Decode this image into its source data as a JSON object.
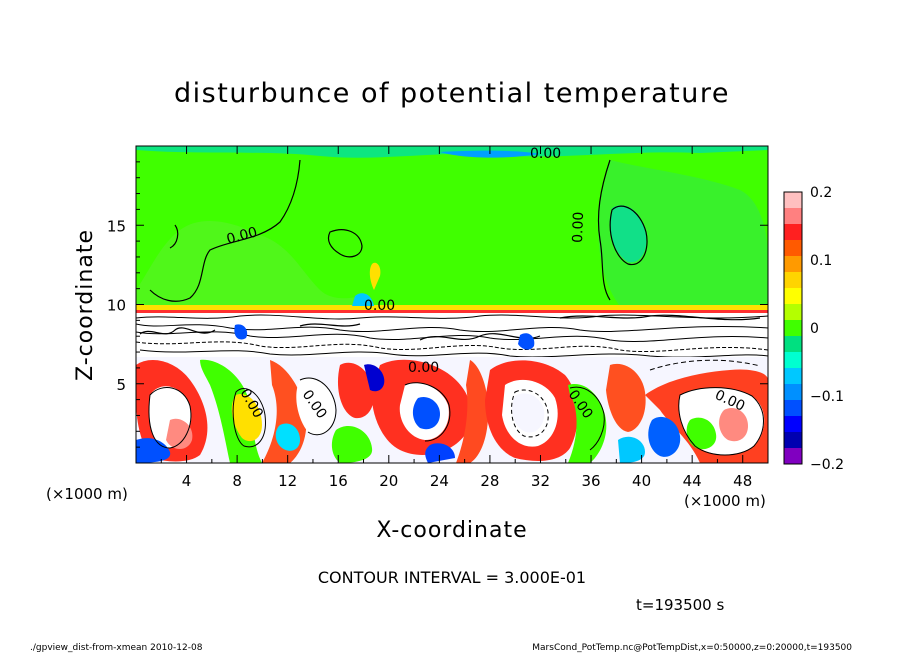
{
  "chart_data": {
    "type": "heatmap",
    "title": "disturbunce of potential temperature",
    "xlabel": "X-coordinate",
    "ylabel": "Z-coordinate",
    "x_unit_left": "(×1000 m)",
    "x_unit_right": "(×1000 m)",
    "xlim": [
      0,
      50
    ],
    "ylim": [
      0,
      20
    ],
    "x_ticks": [
      4,
      8,
      12,
      16,
      20,
      24,
      28,
      32,
      36,
      40,
      44,
      48
    ],
    "y_ticks": [
      5,
      10,
      15
    ],
    "colorbar": {
      "range": [
        -0.2,
        0.2
      ],
      "tick_values": [
        0.2,
        0.1,
        0,
        -0.1,
        -0.2
      ],
      "tick_labels": [
        "0.2",
        "0.1",
        "0",
        "−0.1",
        "−0.2"
      ],
      "colors": [
        "#ffc0c0",
        "#ff8080",
        "#ff2020",
        "#ff5a00",
        "#ff9a00",
        "#ffd400",
        "#ffff00",
        "#b4ff00",
        "#40ff00",
        "#00e080",
        "#00ffd0",
        "#00c8ff",
        "#0090ff",
        "#0050ff",
        "#0000ff",
        "#0000b0",
        "#8000c0"
      ]
    },
    "contour_labels": [
      "0.00",
      "0.00",
      "0.00",
      "0.00",
      "0.00",
      "0.00",
      "0.00",
      "0.00",
      "0.00"
    ],
    "contour_interval": "CONTOUR INTERVAL = 3.000E-01",
    "time": "t=193500 s"
  },
  "footer": {
    "left": "./gpview_dist-from-xmean   2010-12-08",
    "right": "MarsCond_PotTemp.nc@PotTempDist,x=0:50000,z=0:20000,t=193500"
  }
}
